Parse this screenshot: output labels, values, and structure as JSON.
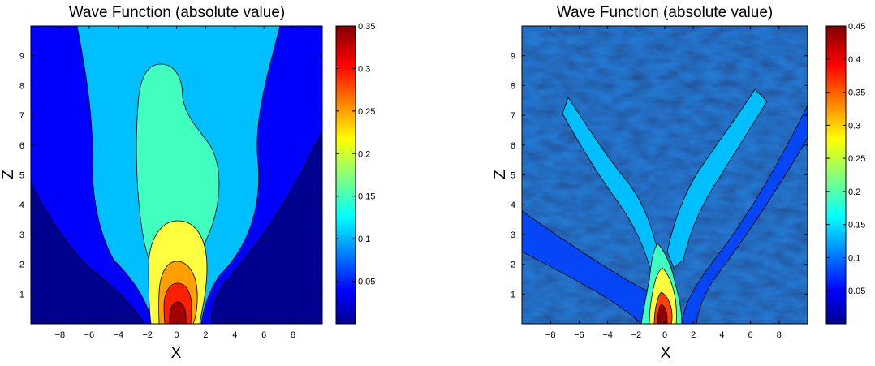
{
  "chart_data": [
    {
      "type": "heatmap",
      "title": "Wave Function (absolute value)",
      "xlabel": "X",
      "ylabel": "Z",
      "xlim": [
        -10,
        10
      ],
      "ylim": [
        0,
        10
      ],
      "xticks": [
        "−8",
        "−6",
        "−4",
        "−2",
        "0",
        "2",
        "4",
        "6",
        "8"
      ],
      "yticks": [
        "1",
        "2",
        "3",
        "4",
        "5",
        "6",
        "7",
        "8",
        "9"
      ],
      "colorbar": {
        "range": [
          0,
          0.35
        ],
        "ticks": [
          "0.05",
          "0.1",
          "0.15",
          "0.2",
          "0.25",
          "0.3",
          "0.35"
        ],
        "colormap": "jet"
      },
      "contour_levels": [
        0.05,
        0.1,
        0.15,
        0.2,
        0.25,
        0.3
      ],
      "description_values": {
        "peak_value": 0.35,
        "peak_location": {
          "x": 0,
          "z": 0.3
        },
        "pattern": "smooth central beam spreading upward"
      }
    },
    {
      "type": "heatmap",
      "title": "Wave Function (absolute value)",
      "xlabel": "X",
      "ylabel": "Z",
      "xlim": [
        -10,
        10
      ],
      "ylim": [
        0,
        10
      ],
      "xticks": [
        "−8",
        "−6",
        "−4",
        "−2",
        "0",
        "2",
        "4",
        "6",
        "8"
      ],
      "yticks": [
        "1",
        "2",
        "3",
        "4",
        "5",
        "6",
        "7",
        "8",
        "9"
      ],
      "colorbar": {
        "range": [
          0,
          0.45
        ],
        "ticks": [
          "0.05",
          "0.1",
          "0.15",
          "0.2",
          "0.25",
          "0.3",
          "0.35",
          "0.4",
          "0.45"
        ],
        "colormap": "jet"
      },
      "contour_levels": [
        0.05,
        0.1,
        0.15,
        0.2,
        0.25,
        0.3,
        0.35,
        0.4
      ],
      "description_values": {
        "peak_value": 0.45,
        "peak_location": {
          "x": 0,
          "z": 0.5
        },
        "pattern": "speckled branching V-shaped beam"
      }
    }
  ]
}
